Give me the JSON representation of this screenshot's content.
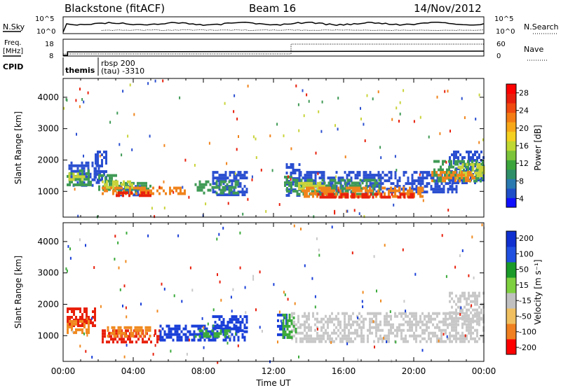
{
  "header": {
    "site": "Blackstone (fitACF)",
    "beam": "Beam 16",
    "date": "14/Nov/2012"
  },
  "summary_panels": {
    "nsky_label": "N.Sky",
    "nsearch_label": "N.Search",
    "freq_label_1": "Freq.",
    "freq_label_2": "[MHz]",
    "nave_label": "Nave",
    "cpid_label": "CPID",
    "noise_ticks": [
      "10^5",
      "10^0"
    ],
    "freq_ticks": [
      "18",
      "8"
    ],
    "nave_ticks": [
      "60",
      "0"
    ],
    "cpid_segments": [
      {
        "name": "themis",
        "start_h": 0,
        "end_h": 2.0
      },
      {
        "name": "rbsp 200",
        "sub": "(tau) -3310",
        "start_h": 2.0,
        "end_h": 24
      }
    ],
    "freq_step_h": 0.25,
    "nave_step_h": 13.0
  },
  "chart_data": [
    {
      "type": "heatmap",
      "panel": "power",
      "xlabel": "",
      "ylabel": "Slant Range [km]",
      "x_range_hours": [
        0,
        24
      ],
      "ylim": [
        180,
        4600
      ],
      "yticks": [
        1000,
        2000,
        3000,
        4000
      ],
      "colorbar": {
        "label": "Power [dB]",
        "ticks": [
          4,
          8,
          12,
          16,
          20,
          24,
          28
        ],
        "colors": [
          "#1010ff",
          "#1f4fc8",
          "#2a7ab0",
          "#2f8f68",
          "#3ca63c",
          "#7cc43a",
          "#c0d832",
          "#f4d020",
          "#f7a818",
          "#f47c14",
          "#ef4a10",
          "#e81e0c",
          "#ff0000"
        ]
      },
      "layers": [
        {
          "name": "blue echoes",
          "color": "#2b4fd0",
          "regions": [
            [
              0.3,
              2.0,
              1150,
              1950
            ],
            [
              3.0,
              4.5,
              850,
              1200
            ],
            [
              8.5,
              10.5,
              850,
              1650
            ],
            [
              12.7,
              13.5,
              900,
              1900
            ],
            [
              13.5,
              22.5,
              1000,
              1650
            ],
            [
              22.0,
              24,
              1250,
              2300
            ],
            [
              1.8,
              2.5,
              1400,
              2300
            ]
          ]
        },
        {
          "name": "green echoes",
          "color": "#3f9a55",
          "regions": [
            [
              0.2,
              1.6,
              1250,
              1700
            ],
            [
              2.0,
              3.0,
              1050,
              1550
            ],
            [
              3.0,
              5.0,
              950,
              1300
            ],
            [
              7.5,
              10.0,
              950,
              1350
            ],
            [
              12.6,
              13.3,
              1000,
              1500
            ],
            [
              13.3,
              18.0,
              950,
              1400
            ],
            [
              21.0,
              24,
              1300,
              2000
            ]
          ]
        },
        {
          "name": "yellow echoes",
          "color": "#c9d43a",
          "regions": [
            [
              0.3,
              1.2,
              1350,
              1600
            ],
            [
              2.2,
              4.0,
              1100,
              1350
            ],
            [
              13.4,
              15.0,
              1050,
              1300
            ],
            [
              22.5,
              24,
              1500,
              1900
            ]
          ]
        },
        {
          "name": "orange echoes",
          "color": "#f0841c",
          "regions": [
            [
              2.2,
              7.0,
              900,
              1150
            ],
            [
              13.6,
              20.5,
              850,
              1150
            ],
            [
              21.0,
              23.5,
              1300,
              1650
            ]
          ]
        },
        {
          "name": "red echoes",
          "color": "#e8200c",
          "regions": [
            [
              3.0,
              5.0,
              850,
              1000
            ],
            [
              14.5,
              20.0,
              800,
              950
            ]
          ]
        }
      ]
    },
    {
      "type": "heatmap",
      "panel": "velocity",
      "xlabel": "Time UT",
      "ylabel": "Slant Range [km]",
      "x_range_hours": [
        0,
        24
      ],
      "xticks": [
        "00:00",
        "04:00",
        "08:00",
        "12:00",
        "16:00",
        "20:00",
        "00:00"
      ],
      "ylim": [
        180,
        4600
      ],
      "yticks": [
        1000,
        2000,
        3000,
        4000
      ],
      "colorbar": {
        "label": "Velocity [m s⁻¹]",
        "ticks": [
          "200",
          "100",
          "50",
          "15",
          "-15",
          "-50",
          "-100",
          "-200"
        ],
        "colors": [
          "#1030d0",
          "#2050e0",
          "#1a9a28",
          "#7fd040",
          "#c0c0c0",
          "#f0c060",
          "#f08020",
          "#ff0000"
        ]
      },
      "layers": [
        {
          "name": "gray ground scatter",
          "color": "#c8c8c8",
          "regions": [
            [
              13.0,
              24,
              850,
              1750
            ],
            [
              22.0,
              24,
              1400,
              2400
            ]
          ]
        },
        {
          "name": "red flow",
          "color": "#e8200c",
          "regions": [
            [
              0.2,
              1.8,
              1300,
              1900
            ],
            [
              2.2,
              5.5,
              800,
              1200
            ]
          ]
        },
        {
          "name": "orange flow",
          "color": "#f08a20",
          "regions": [
            [
              0.2,
              1.5,
              1100,
              1500
            ],
            [
              2.5,
              5.0,
              1000,
              1300
            ]
          ]
        },
        {
          "name": "blue flow",
          "color": "#1a3fd8",
          "regions": [
            [
              5.5,
              10.5,
              850,
              1350
            ],
            [
              8.5,
              10.5,
              1200,
              1650
            ],
            [
              12.2,
              12.8,
              900,
              1700
            ]
          ]
        },
        {
          "name": "green flow",
          "color": "#3aaa3a",
          "regions": [
            [
              7.5,
              9.5,
              1000,
              1200
            ],
            [
              12.5,
              13.3,
              900,
              1700
            ]
          ]
        }
      ]
    }
  ]
}
